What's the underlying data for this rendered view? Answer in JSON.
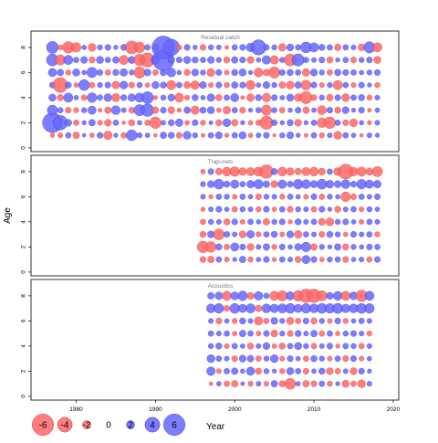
{
  "chart_data": {
    "type": "scatter",
    "description_kind": "bubble residual plot",
    "ylabel": "Age",
    "xlabel": "Year",
    "x_ticks": [
      1980,
      1990,
      2000,
      2010,
      2020
    ],
    "y_ticks": [
      0,
      2,
      4,
      6,
      8
    ],
    "xlim": [
      1974.3,
      2020.7
    ],
    "ylim": [
      -0.3,
      9.3
    ],
    "colors": {
      "positive": "#6666ff",
      "negative": "#ff6666",
      "outline_positive": "#3333cc",
      "outline_negative": "#cc3333"
    },
    "ages": [
      1,
      2,
      3,
      4,
      5,
      6,
      7,
      8
    ],
    "panels": [
      {
        "title": "Residual catch",
        "year_start": 1977,
        "year_end": 2018,
        "residuals": [
          [
            -0.8,
            -1.0,
            1.2,
            -1.5,
            0.6,
            -0.9,
            1.3,
            -2.1,
            0.8,
            -1.2,
            2.8,
            1.1,
            0.9,
            -0.6,
            1.5,
            1.4,
            -1.3,
            1.9,
            1.1,
            -0.7,
            1.2,
            1.6,
            -0.8,
            1.2,
            1.7,
            -0.9,
            1.0,
            1.3,
            -0.5,
            1.1,
            1.6,
            0.8,
            -0.7,
            1.2,
            -1.1,
            1.0,
            -1.9,
            1.2,
            0.9,
            -0.6,
            1.0,
            0.8
          ],
          [
            5.5,
            3.9,
            1.6,
            -1.2,
            0.8,
            1.5,
            -1.0,
            -1.6,
            1.2,
            -0.6,
            -1.4,
            0.9,
            -1.2,
            -3.0,
            0.9,
            1.4,
            1.8,
            -0.9,
            1.3,
            -1.1,
            0.7,
            -1.4,
            1.9,
            -1.5,
            0.8,
            -0.9,
            -1.2,
            -3.5,
            1.3,
            0.8,
            1.4,
            -1.6,
            0.8,
            1.2,
            -2.4,
            -3.0,
            1.2,
            -1.3,
            -1.9,
            0.9,
            -0.8,
            1.0
          ],
          [
            2.6,
            1.2,
            -1.3,
            -1.1,
            1.1,
            2.0,
            -0.7,
            -1.5,
            2.2,
            1.0,
            -1.3,
            2.9,
            3.3,
            -1.5,
            1.3,
            -1.6,
            -0.8,
            1.5,
            -2.0,
            1.4,
            1.7,
            -0.9,
            -1.8,
            1.2,
            -1.3,
            0.8,
            1.2,
            -2.6,
            1.1,
            -1.2,
            0.9,
            1.3,
            -1.5,
            0.9,
            -2.2,
            1.3,
            -1.4,
            1.6,
            0.8,
            1.3,
            -0.7,
            0.9
          ],
          [
            1.7,
            -1.4,
            2.3,
            0.9,
            -1.2,
            2.4,
            1.2,
            1.9,
            -2.0,
            1.3,
            1.8,
            2.3,
            3.1,
            -0.8,
            1.1,
            1.6,
            -2.2,
            -1.0,
            1.4,
            0.9,
            1.8,
            -1.4,
            1.2,
            2.0,
            -0.7,
            -1.8,
            1.4,
            -2.1,
            1.3,
            0.9,
            1.7,
            -1.8,
            -3.2,
            -1.3,
            1.1,
            -1.5,
            1.3,
            -1.9,
            1.2,
            1.4,
            -1.1,
            1.0
          ],
          [
            1.3,
            -4.0,
            1.4,
            -0.9,
            2.8,
            -1.2,
            1.1,
            1.3,
            -1.8,
            1.9,
            -1.3,
            1.2,
            -0.9,
            1.7,
            1.4,
            -2.3,
            1.2,
            -1.6,
            -2.1,
            1.6,
            -1.0,
            1.3,
            -1.2,
            1.5,
            1.3,
            -2.3,
            0.9,
            1.6,
            1.1,
            -1.5,
            -1.9,
            1.5,
            -2.5,
            1.3,
            -1.0,
            1.1,
            -2.3,
            1.2,
            -1.0,
            1.3,
            0.8,
            -1.1
          ],
          [
            2.0,
            1.5,
            -1.1,
            1.7,
            0.9,
            2.6,
            1.3,
            -1.2,
            1.4,
            1.8,
            1.1,
            -2.9,
            1.6,
            -1.2,
            1.5,
            2.2,
            0.9,
            -1.4,
            1.6,
            1.1,
            -1.9,
            1.3,
            -1.0,
            1.4,
            1.7,
            0.8,
            -2.2,
            -1.5,
            -2.9,
            1.3,
            1.4,
            1.2,
            -1.8,
            1.6,
            1.1,
            -1.2,
            1.5,
            1.3,
            1.2,
            0.9,
            1.1,
            1.3
          ],
          [
            3.1,
            -2.6,
            2.3,
            1.2,
            1.6,
            -1.4,
            1.7,
            1.2,
            1.5,
            -2.3,
            1.7,
            -3.0,
            -3.8,
            2.2,
            6.0,
            1.5,
            1.3,
            1.7,
            1.4,
            1.2,
            1.6,
            1.1,
            -1.4,
            1.5,
            1.3,
            -1.6,
            0.9,
            2.1,
            -2.1,
            1.1,
            -3.1,
            3.2,
            1.2,
            1.0,
            1.3,
            -1.4,
            0.8,
            1.2,
            -1.3,
            1.1,
            1.3,
            -1.7
          ],
          [
            3.1,
            -1.0,
            -3.0,
            -2.4,
            0.9,
            -1.9,
            1.1,
            1.3,
            0.8,
            1.4,
            -3.4,
            -2.7,
            1.2,
            1.6,
            6.4,
            4.5,
            -1.1,
            1.3,
            0.9,
            -1.3,
            1.1,
            1.0,
            -0.7,
            1.2,
            1.3,
            2.1,
            4.1,
            1.3,
            1.1,
            -1.8,
            1.6,
            1.2,
            2.8,
            2.3,
            1.4,
            1.2,
            -1.5,
            1.2,
            1.0,
            -1.6,
            2.9,
            -2.3
          ]
        ]
      },
      {
        "title": "Trap-nets",
        "year_start": 1996,
        "year_end": 2018,
        "residuals": [
          [
            -1.3,
            -1.5,
            1.2,
            -1.0,
            0.8,
            1.5,
            -1.1,
            0.9,
            1.3,
            -0.8,
            1.2,
            1.0,
            -1.4,
            2.0,
            1.3,
            -0.9,
            1.1,
            1.2,
            -1.3,
            0.9,
            1.0,
            -1.2,
            1.3
          ],
          [
            -3.0,
            -2.7,
            1.4,
            -1.2,
            2.0,
            1.3,
            -1.6,
            1.0,
            1.5,
            -1.1,
            1.3,
            0.9,
            1.6,
            2.4,
            -1.5,
            1.1,
            0.8,
            1.5,
            -1.4,
            1.1,
            0.9,
            1.3,
            1.2
          ],
          [
            -1.4,
            1.6,
            -2.8,
            1.3,
            1.0,
            -1.6,
            1.8,
            -1.1,
            1.2,
            1.4,
            -1.0,
            1.6,
            -1.8,
            1.2,
            1.0,
            -1.3,
            1.4,
            1.1,
            -0.9,
            1.3,
            1.0,
            1.2,
            -1.1
          ],
          [
            -1.2,
            1.1,
            1.0,
            -1.4,
            1.3,
            -1.0,
            1.2,
            0.9,
            -1.5,
            1.1,
            1.3,
            -0.8,
            1.4,
            1.0,
            1.2,
            -1.6,
            -1.9,
            1.1,
            1.3,
            0.9,
            -1.0,
            1.2,
            1.0
          ],
          [
            -0.8,
            1.0,
            1.3,
            0.9,
            -1.2,
            1.1,
            1.0,
            -1.1,
            1.3,
            -0.9,
            1.2,
            -1.3,
            1.1,
            1.0,
            -1.2,
            1.3,
            0.8,
            -1.4,
            1.0,
            1.2,
            -1.0,
            1.1,
            0.9
          ],
          [
            1.0,
            -0.8,
            1.2,
            1.1,
            -1.0,
            1.2,
            0.9,
            -1.3,
            1.1,
            1.0,
            -1.1,
            1.2,
            0.9,
            -1.0,
            1.3,
            -1.2,
            1.1,
            0.9,
            -2.4,
            -1.3,
            1.2,
            1.0,
            1.3
          ],
          [
            1.1,
            1.6,
            2.5,
            1.4,
            2.0,
            1.2,
            1.8,
            2.3,
            1.5,
            -1.6,
            2.1,
            1.3,
            2.4,
            2.2,
            1.7,
            2.5,
            1.9,
            1.6,
            2.2,
            1.3,
            2.4,
            2.0,
            1.8
          ],
          [
            -0.9,
            1.3,
            -1.5,
            -2.2,
            -2.4,
            -1.8,
            -2.0,
            -2.3,
            -3.6,
            1.4,
            -2.2,
            -1.8,
            -1.5,
            -2.0,
            -2.2,
            -1.6,
            1.2,
            -1.9,
            -4.0,
            -2.1,
            -2.3,
            -1.7,
            -2.6
          ]
        ]
      },
      {
        "title": "Acoustics",
        "year_start": 1997,
        "year_end": 2017,
        "residuals": [
          [
            -0.6,
            0.9,
            -1.2,
            -1.5,
            0.7,
            -1.1,
            1.0,
            -1.0,
            1.5,
            -1.4,
            -2.8,
            0.9,
            -1.5,
            -1.3,
            1.2,
            -1.1,
            0.8,
            -1.7,
            -1.2,
            -1.9,
            1.0
          ],
          [
            2.1,
            -1.0,
            1.2,
            1.5,
            0.9,
            2.0,
            -1.4,
            1.1,
            0.8,
            -1.1,
            1.7,
            1.2,
            -1.3,
            0.9,
            1.4,
            -1.6,
            -1.2,
            1.0,
            -1.6,
            1.3,
            0.8
          ],
          [
            1.9,
            1.2,
            1.0,
            -1.3,
            1.6,
            1.5,
            -1.2,
            1.1,
            1.9,
            -1.0,
            1.3,
            0.9,
            -1.2,
            1.4,
            1.1,
            -1.0,
            1.2,
            -1.3,
            1.3,
            -1.0,
            0.9
          ],
          [
            1.1,
            1.4,
            -1.0,
            1.2,
            0.9,
            -1.4,
            1.0,
            1.6,
            -0.9,
            -1.4,
            1.2,
            1.7,
            1.1,
            -1.2,
            1.0,
            1.3,
            -0.8,
            1.2,
            1.1,
            -1.2,
            1.0
          ],
          [
            1.2,
            1.0,
            1.2,
            -0.9,
            1.5,
            1.2,
            -1.0,
            1.3,
            -1.6,
            1.1,
            -1.3,
            1.4,
            1.0,
            1.5,
            -1.2,
            1.2,
            -0.9,
            1.1,
            1.3,
            1.0,
            -1.1
          ],
          [
            1.0,
            -1.3,
            0.9,
            -1.1,
            1.4,
            1.0,
            -2.0,
            -1.2,
            1.6,
            1.1,
            -1.7,
            -1.2,
            1.3,
            -1.4,
            1.1,
            -1.0,
            1.3,
            -1.1,
            0.9,
            1.2,
            1.0
          ],
          [
            2.2,
            2.4,
            -1.3,
            2.5,
            2.0,
            2.3,
            -1.5,
            2.2,
            2.1,
            2.3,
            2.5,
            2.0,
            2.4,
            2.2,
            2.5,
            2.4,
            2.6,
            2.1,
            2.2,
            2.5,
            2.4
          ],
          [
            1.5,
            1.8,
            -2.3,
            1.9,
            2.4,
            -1.6,
            2.1,
            1.2,
            -2.3,
            -2.6,
            2.0,
            -2.7,
            -3.6,
            -3.6,
            -2.6,
            1.6,
            2.2,
            -2.3,
            1.9,
            -3.0,
            2.3
          ]
        ]
      }
    ],
    "legend": {
      "placement": "bottom-left",
      "entries": [
        {
          "label": "-6",
          "value": -6
        },
        {
          "label": "-4",
          "value": -4
        },
        {
          "label": "-2",
          "value": -2
        },
        {
          "label": "0",
          "value": 0
        },
        {
          "label": "2",
          "value": 2
        },
        {
          "label": "4",
          "value": 4
        },
        {
          "label": "6",
          "value": 6
        }
      ]
    },
    "grid": false
  }
}
